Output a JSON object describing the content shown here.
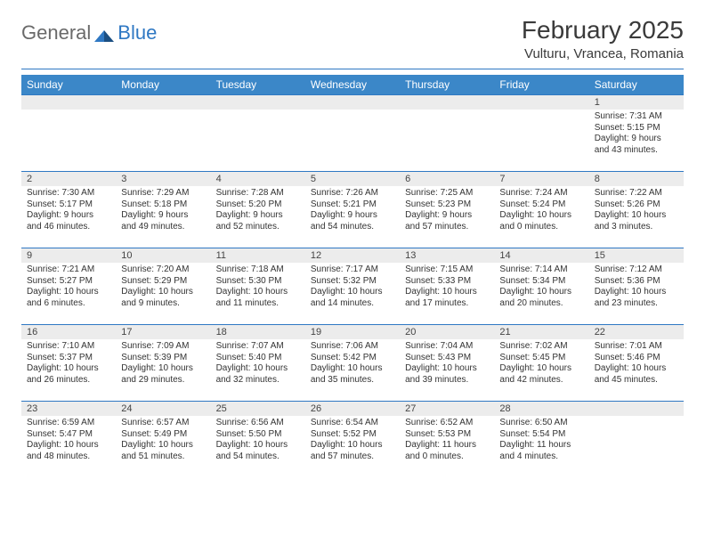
{
  "logo": {
    "word1": "General",
    "word2": "Blue"
  },
  "title": "February 2025",
  "location": "Vulturu, Vrancea, Romania",
  "colors": {
    "header_bg": "#3b87c8",
    "rule": "#2f78c3",
    "daynum_bg": "#ececec",
    "text": "#333333",
    "logo_gray": "#6a6a6a",
    "logo_blue": "#2f78c3"
  },
  "columns": [
    "Sunday",
    "Monday",
    "Tuesday",
    "Wednesday",
    "Thursday",
    "Friday",
    "Saturday"
  ],
  "weeks": [
    [
      null,
      null,
      null,
      null,
      null,
      null,
      {
        "n": "1",
        "sunrise": "7:31 AM",
        "sunset": "5:15 PM",
        "dlh": "9",
        "dlm": "43"
      }
    ],
    [
      {
        "n": "2",
        "sunrise": "7:30 AM",
        "sunset": "5:17 PM",
        "dlh": "9",
        "dlm": "46"
      },
      {
        "n": "3",
        "sunrise": "7:29 AM",
        "sunset": "5:18 PM",
        "dlh": "9",
        "dlm": "49"
      },
      {
        "n": "4",
        "sunrise": "7:28 AM",
        "sunset": "5:20 PM",
        "dlh": "9",
        "dlm": "52"
      },
      {
        "n": "5",
        "sunrise": "7:26 AM",
        "sunset": "5:21 PM",
        "dlh": "9",
        "dlm": "54"
      },
      {
        "n": "6",
        "sunrise": "7:25 AM",
        "sunset": "5:23 PM",
        "dlh": "9",
        "dlm": "57"
      },
      {
        "n": "7",
        "sunrise": "7:24 AM",
        "sunset": "5:24 PM",
        "dlh": "10",
        "dlm": "0"
      },
      {
        "n": "8",
        "sunrise": "7:22 AM",
        "sunset": "5:26 PM",
        "dlh": "10",
        "dlm": "3"
      }
    ],
    [
      {
        "n": "9",
        "sunrise": "7:21 AM",
        "sunset": "5:27 PM",
        "dlh": "10",
        "dlm": "6"
      },
      {
        "n": "10",
        "sunrise": "7:20 AM",
        "sunset": "5:29 PM",
        "dlh": "10",
        "dlm": "9"
      },
      {
        "n": "11",
        "sunrise": "7:18 AM",
        "sunset": "5:30 PM",
        "dlh": "10",
        "dlm": "11"
      },
      {
        "n": "12",
        "sunrise": "7:17 AM",
        "sunset": "5:32 PM",
        "dlh": "10",
        "dlm": "14"
      },
      {
        "n": "13",
        "sunrise": "7:15 AM",
        "sunset": "5:33 PM",
        "dlh": "10",
        "dlm": "17"
      },
      {
        "n": "14",
        "sunrise": "7:14 AM",
        "sunset": "5:34 PM",
        "dlh": "10",
        "dlm": "20"
      },
      {
        "n": "15",
        "sunrise": "7:12 AM",
        "sunset": "5:36 PM",
        "dlh": "10",
        "dlm": "23"
      }
    ],
    [
      {
        "n": "16",
        "sunrise": "7:10 AM",
        "sunset": "5:37 PM",
        "dlh": "10",
        "dlm": "26"
      },
      {
        "n": "17",
        "sunrise": "7:09 AM",
        "sunset": "5:39 PM",
        "dlh": "10",
        "dlm": "29"
      },
      {
        "n": "18",
        "sunrise": "7:07 AM",
        "sunset": "5:40 PM",
        "dlh": "10",
        "dlm": "32"
      },
      {
        "n": "19",
        "sunrise": "7:06 AM",
        "sunset": "5:42 PM",
        "dlh": "10",
        "dlm": "35"
      },
      {
        "n": "20",
        "sunrise": "7:04 AM",
        "sunset": "5:43 PM",
        "dlh": "10",
        "dlm": "39"
      },
      {
        "n": "21",
        "sunrise": "7:02 AM",
        "sunset": "5:45 PM",
        "dlh": "10",
        "dlm": "42"
      },
      {
        "n": "22",
        "sunrise": "7:01 AM",
        "sunset": "5:46 PM",
        "dlh": "10",
        "dlm": "45"
      }
    ],
    [
      {
        "n": "23",
        "sunrise": "6:59 AM",
        "sunset": "5:47 PM",
        "dlh": "10",
        "dlm": "48"
      },
      {
        "n": "24",
        "sunrise": "6:57 AM",
        "sunset": "5:49 PM",
        "dlh": "10",
        "dlm": "51"
      },
      {
        "n": "25",
        "sunrise": "6:56 AM",
        "sunset": "5:50 PM",
        "dlh": "10",
        "dlm": "54"
      },
      {
        "n": "26",
        "sunrise": "6:54 AM",
        "sunset": "5:52 PM",
        "dlh": "10",
        "dlm": "57"
      },
      {
        "n": "27",
        "sunrise": "6:52 AM",
        "sunset": "5:53 PM",
        "dlh": "11",
        "dlm": "0"
      },
      {
        "n": "28",
        "sunrise": "6:50 AM",
        "sunset": "5:54 PM",
        "dlh": "11",
        "dlm": "4"
      },
      null
    ]
  ],
  "labels": {
    "sunrise": "Sunrise:",
    "sunset": "Sunset:",
    "daylight_pre": "Daylight:",
    "hours_word": "hours",
    "and_word": "and",
    "minutes_word": "minutes."
  }
}
